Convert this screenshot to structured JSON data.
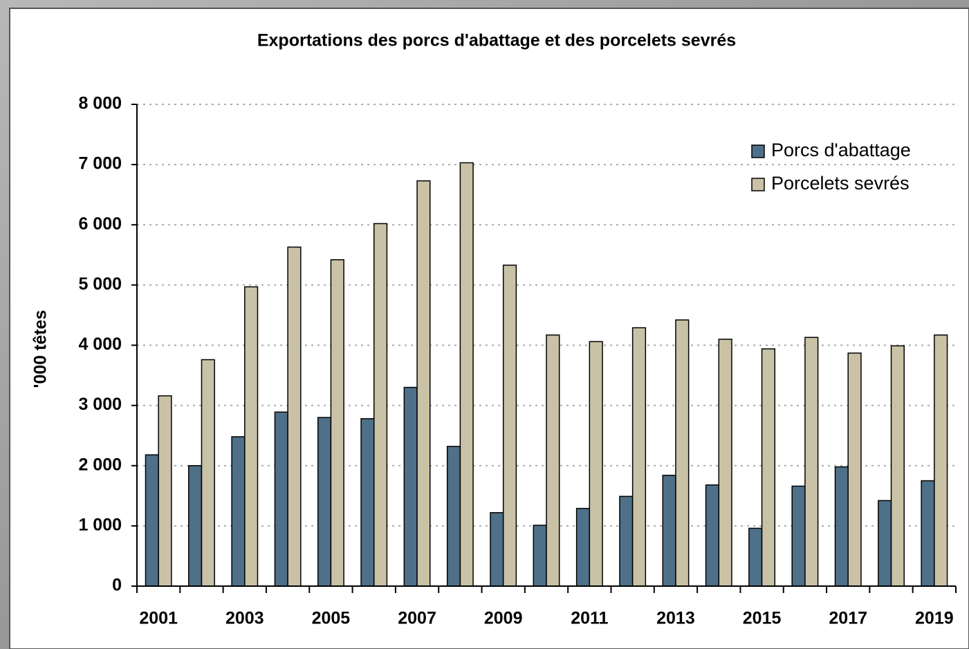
{
  "chart_data": {
    "type": "bar",
    "title": "Exportations des porcs d'abattage et des porcelets sevrés",
    "ylabel": "'000 têtes",
    "categories": [
      "2001",
      null,
      "2003",
      null,
      "2005",
      null,
      "2007",
      null,
      "2009",
      null,
      "2011",
      null,
      "2013",
      null,
      "2015",
      null,
      "2017",
      null,
      "2019"
    ],
    "series": [
      {
        "name": "Porcs d'abattage",
        "color": "#4f7089",
        "values": [
          2180,
          2000,
          2480,
          2890,
          2800,
          2780,
          3300,
          2320,
          1220,
          1010,
          1290,
          1490,
          1840,
          1680,
          960,
          1660,
          1980,
          1420,
          1750
        ]
      },
      {
        "name": "Porcelets sevrés",
        "color": "#c9c2a6",
        "values": [
          3160,
          3760,
          4970,
          5630,
          5420,
          6020,
          6730,
          7030,
          5330,
          4170,
          4060,
          4290,
          4420,
          4100,
          3940,
          4130,
          3870,
          3990,
          4170
        ]
      }
    ],
    "ylim": [
      0,
      8000
    ],
    "yticks": [
      0,
      {
        "value": 1000,
        "label": "1 000"
      },
      {
        "value": 2000,
        "label": "2 000"
      },
      {
        "value": 3000,
        "label": "3 000"
      },
      {
        "value": 4000,
        "label": "4 000"
      },
      {
        "value": 5000,
        "label": "5 000"
      },
      {
        "value": 6000,
        "label": "6 000"
      },
      {
        "value": 7000,
        "label": "7 000"
      },
      {
        "value": 8000,
        "label": "8 000"
      }
    ],
    "grid": true,
    "legend": "upper right"
  }
}
